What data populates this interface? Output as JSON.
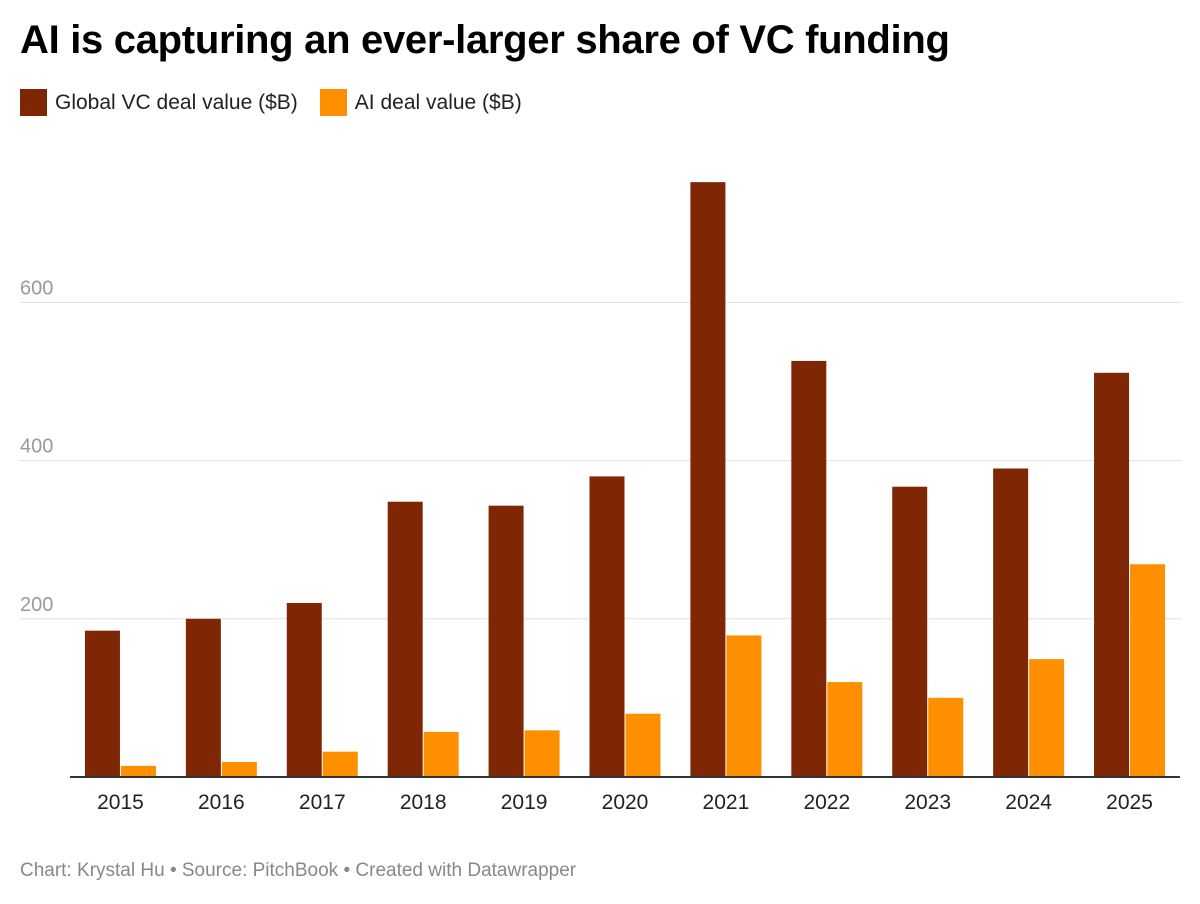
{
  "title": "AI is capturing an ever-larger share of VC funding",
  "footer": {
    "chart_label": "Chart: Krystal Hu",
    "separator": "•",
    "source_label": "Source: PitchBook",
    "created_label": "Created with Datawrapper"
  },
  "colors": {
    "global": "#7f2704",
    "ai": "#fe9000",
    "grid": "#e0e0e0",
    "axis": "#333333"
  },
  "chart_data": {
    "type": "bar",
    "title": "AI is capturing an ever-larger share of VC funding",
    "xlabel": "",
    "ylabel": "",
    "categories": [
      "2015",
      "2016",
      "2017",
      "2018",
      "2019",
      "2020",
      "2021",
      "2022",
      "2023",
      "2024",
      "2025"
    ],
    "series": [
      {
        "name": "Global VC deal value ($B)",
        "values": [
          185,
          200,
          220,
          348,
          343,
          380,
          752,
          526,
          367,
          390,
          511
        ]
      },
      {
        "name": "AI deal value ($B)",
        "values": [
          14,
          19,
          32,
          57,
          59,
          80,
          179,
          120,
          100,
          149,
          269
        ]
      }
    ],
    "yticks": [
      200,
      400,
      600
    ],
    "ylim": [
      0,
      780
    ],
    "grid": true,
    "legend_position": "top-left"
  }
}
